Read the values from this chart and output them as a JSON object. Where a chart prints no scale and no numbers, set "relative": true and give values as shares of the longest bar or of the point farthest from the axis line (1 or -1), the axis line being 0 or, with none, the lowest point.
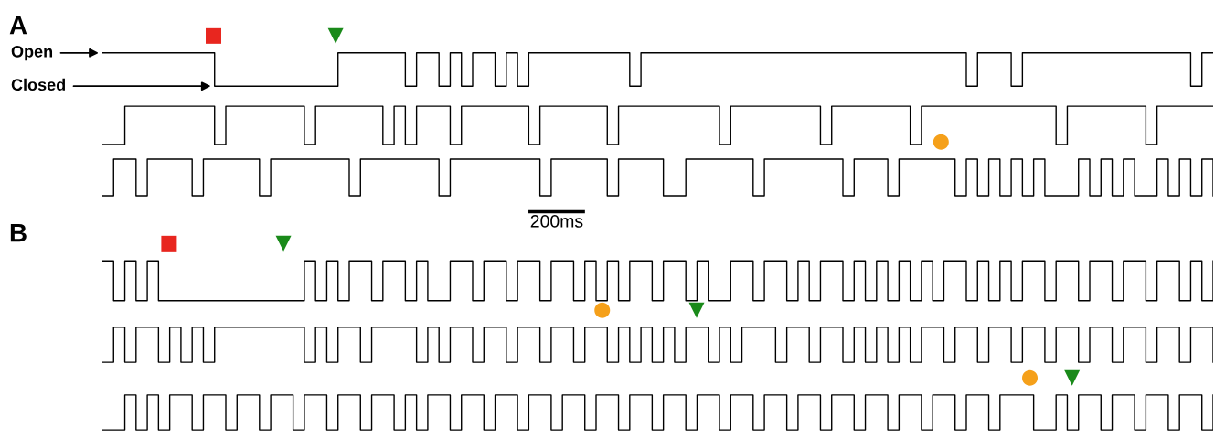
{
  "chart_data": [
    {
      "type": "step",
      "title": "A",
      "relative": true,
      "annotations": [
        "Open",
        "Closed"
      ],
      "categories": [
        null,
        null,
        null,
        null,
        null,
        null,
        null,
        null,
        null,
        null,
        null,
        null,
        null,
        null,
        null,
        null,
        null,
        null,
        null,
        null,
        null,
        null,
        null,
        null,
        null,
        null,
        null,
        null,
        null,
        null,
        null,
        null,
        null,
        null,
        null,
        null,
        null,
        null,
        null,
        null,
        null,
        null,
        null,
        null,
        null,
        null,
        null,
        null,
        null,
        null,
        null,
        null,
        null,
        null,
        null,
        null,
        null,
        null,
        null,
        null,
        null,
        null,
        null,
        null,
        null,
        null,
        null,
        null,
        null,
        null,
        null,
        null,
        null,
        null,
        null,
        null,
        null,
        null,
        null,
        null,
        null,
        null,
        null,
        null,
        null,
        null,
        null,
        null,
        null,
        null,
        null,
        null,
        null,
        null,
        null,
        null,
        null,
        null,
        null,
        null
      ],
      "series": [
        {
          "color": "#000000",
          "values": [
            1,
            1,
            1,
            1,
            1,
            1,
            1,
            1,
            1,
            1,
            0,
            0,
            0,
            0,
            0,
            0,
            0,
            0,
            0,
            0,
            0,
            1,
            1,
            1,
            1,
            1,
            1,
            0,
            1,
            1,
            0,
            1,
            0,
            1,
            1,
            0,
            1,
            0,
            1,
            1,
            1,
            1,
            1,
            1,
            1,
            1,
            1,
            0,
            1,
            1,
            1,
            1,
            1,
            1,
            1,
            1,
            1,
            1,
            1,
            1,
            1,
            1,
            1,
            1,
            1,
            1,
            1,
            1,
            1,
            1,
            1,
            1,
            1,
            1,
            1,
            1,
            1,
            0,
            1,
            1,
            1,
            0,
            1,
            1,
            1,
            1,
            1,
            1,
            1,
            1,
            1,
            1,
            1,
            1,
            1,
            1,
            1,
            0,
            1,
            1
          ]
        }
      ]
    },
    {
      "type": "step",
      "relative": true,
      "categories": [
        null,
        null,
        null,
        null,
        null,
        null,
        null,
        null,
        null,
        null,
        null,
        null,
        null,
        null,
        null,
        null,
        null,
        null,
        null,
        null,
        null,
        null,
        null,
        null,
        null,
        null,
        null,
        null,
        null,
        null,
        null,
        null,
        null,
        null,
        null,
        null,
        null,
        null,
        null,
        null,
        null,
        null,
        null,
        null,
        null,
        null,
        null,
        null,
        null,
        null,
        null,
        null,
        null,
        null,
        null,
        null,
        null,
        null,
        null,
        null,
        null,
        null,
        null,
        null,
        null,
        null,
        null,
        null,
        null,
        null,
        null,
        null,
        null,
        null,
        null,
        null,
        null,
        null,
        null,
        null,
        null,
        null,
        null,
        null,
        null,
        null,
        null,
        null,
        null,
        null,
        null,
        null,
        null,
        null,
        null,
        null,
        null,
        null,
        null,
        null
      ],
      "series": [
        {
          "color": "#000000",
          "values": [
            0,
            0,
            1,
            1,
            1,
            1,
            1,
            1,
            1,
            1,
            0,
            1,
            1,
            1,
            1,
            1,
            1,
            1,
            0,
            1,
            1,
            1,
            1,
            1,
            1,
            0,
            1,
            0,
            1,
            1,
            1,
            0,
            1,
            1,
            1,
            1,
            1,
            1,
            0,
            1,
            1,
            1,
            1,
            1,
            1,
            0,
            1,
            1,
            1,
            1,
            1,
            1,
            1,
            1,
            1,
            0,
            1,
            1,
            1,
            1,
            1,
            1,
            1,
            1,
            0,
            1,
            1,
            1,
            1,
            1,
            1,
            1,
            0,
            1,
            1,
            1,
            1,
            1,
            1,
            1,
            1,
            1,
            1,
            1,
            1,
            0,
            1,
            1,
            1,
            1,
            1,
            1,
            1,
            0,
            1,
            1,
            1,
            1,
            1,
            1
          ]
        }
      ]
    },
    {
      "type": "step",
      "relative": true,
      "annotations": [
        "200ms"
      ],
      "categories": [
        null,
        null,
        null,
        null,
        null,
        null,
        null,
        null,
        null,
        null,
        null,
        null,
        null,
        null,
        null,
        null,
        null,
        null,
        null,
        null,
        null,
        null,
        null,
        null,
        null,
        null,
        null,
        null,
        null,
        null,
        null,
        null,
        null,
        null,
        null,
        null,
        null,
        null,
        null,
        null,
        null,
        null,
        null,
        null,
        null,
        null,
        null,
        null,
        null,
        null,
        null,
        null,
        null,
        null,
        null,
        null,
        null,
        null,
        null,
        null,
        null,
        null,
        null,
        null,
        null,
        null,
        null,
        null,
        null,
        null,
        null,
        null,
        null,
        null,
        null,
        null,
        null,
        null,
        null,
        null,
        null,
        null,
        null,
        null,
        null,
        null,
        null,
        null,
        null,
        null,
        null,
        null,
        null,
        null,
        null,
        null,
        null,
        null,
        null,
        null
      ],
      "series": [
        {
          "color": "#000000",
          "values": [
            0,
            1,
            1,
            0,
            1,
            1,
            1,
            1,
            0,
            1,
            1,
            1,
            1,
            1,
            0,
            1,
            1,
            1,
            1,
            1,
            1,
            1,
            0,
            1,
            1,
            1,
            1,
            1,
            1,
            1,
            0,
            1,
            1,
            1,
            1,
            1,
            1,
            1,
            1,
            0,
            1,
            1,
            1,
            1,
            1,
            0,
            1,
            1,
            1,
            1,
            0,
            0,
            1,
            1,
            1,
            1,
            1,
            1,
            0,
            1,
            1,
            1,
            1,
            1,
            1,
            1,
            0,
            1,
            1,
            1,
            0,
            1,
            1,
            1,
            1,
            1,
            0,
            1,
            0,
            1,
            0,
            1,
            0,
            1,
            0,
            0,
            0,
            1,
            0,
            1,
            0,
            1,
            0,
            0,
            1,
            0,
            1,
            0,
            1,
            0
          ]
        }
      ]
    },
    {
      "type": "step",
      "title": "B",
      "relative": true,
      "categories": [
        null,
        null,
        null,
        null,
        null,
        null,
        null,
        null,
        null,
        null,
        null,
        null,
        null,
        null,
        null,
        null,
        null,
        null,
        null,
        null,
        null,
        null,
        null,
        null,
        null,
        null,
        null,
        null,
        null,
        null,
        null,
        null,
        null,
        null,
        null,
        null,
        null,
        null,
        null,
        null,
        null,
        null,
        null,
        null,
        null,
        null,
        null,
        null,
        null,
        null,
        null,
        null,
        null,
        null,
        null,
        null,
        null,
        null,
        null,
        null,
        null,
        null,
        null,
        null,
        null,
        null,
        null,
        null,
        null,
        null,
        null,
        null,
        null,
        null,
        null,
        null,
        null,
        null,
        null,
        null,
        null,
        null,
        null,
        null,
        null,
        null,
        null,
        null,
        null,
        null,
        null,
        null,
        null,
        null,
        null,
        null,
        null,
        null,
        null,
        null
      ],
      "series": [
        {
          "color": "#000000",
          "values": [
            1,
            0,
            1,
            0,
            1,
            0,
            0,
            0,
            0,
            0,
            0,
            0,
            0,
            0,
            0,
            0,
            0,
            0,
            1,
            0,
            1,
            0,
            1,
            1,
            0,
            1,
            1,
            0,
            1,
            0,
            0,
            1,
            1,
            0,
            1,
            1,
            0,
            1,
            1,
            0,
            1,
            1,
            0,
            1,
            0,
            1,
            0,
            1,
            1,
            0,
            1,
            1,
            0,
            1,
            0,
            0,
            1,
            1,
            0,
            1,
            1,
            0,
            1,
            0,
            1,
            1,
            0,
            1,
            0,
            1,
            0,
            1,
            0,
            1,
            0,
            1,
            1,
            0,
            1,
            0,
            1,
            0,
            1,
            1,
            0,
            1,
            1,
            0,
            1,
            1,
            0,
            1,
            1,
            0,
            1,
            1,
            0,
            1,
            0,
            1
          ]
        }
      ]
    },
    {
      "type": "step",
      "relative": true,
      "categories": [
        null,
        null,
        null,
        null,
        null,
        null,
        null,
        null,
        null,
        null,
        null,
        null,
        null,
        null,
        null,
        null,
        null,
        null,
        null,
        null,
        null,
        null,
        null,
        null,
        null,
        null,
        null,
        null,
        null,
        null,
        null,
        null,
        null,
        null,
        null,
        null,
        null,
        null,
        null,
        null,
        null,
        null,
        null,
        null,
        null,
        null,
        null,
        null,
        null,
        null,
        null,
        null,
        null,
        null,
        null,
        null,
        null,
        null,
        null,
        null,
        null,
        null,
        null,
        null,
        null,
        null,
        null,
        null,
        null,
        null,
        null,
        null,
        null,
        null,
        null,
        null,
        null,
        null,
        null,
        null,
        null,
        null,
        null,
        null,
        null,
        null,
        null,
        null,
        null,
        null,
        null,
        null,
        null,
        null,
        null,
        null,
        null,
        null,
        null,
        null
      ],
      "series": [
        {
          "color": "#000000",
          "values": [
            0,
            1,
            0,
            1,
            1,
            0,
            1,
            0,
            1,
            0,
            1,
            1,
            1,
            1,
            1,
            1,
            1,
            1,
            0,
            1,
            0,
            1,
            1,
            0,
            1,
            1,
            1,
            1,
            0,
            1,
            0,
            1,
            1,
            0,
            1,
            1,
            0,
            1,
            1,
            0,
            1,
            1,
            0,
            1,
            1,
            0,
            1,
            0,
            1,
            0,
            1,
            0,
            1,
            1,
            0,
            1,
            0,
            1,
            1,
            1,
            0,
            1,
            1,
            0,
            1,
            1,
            0,
            1,
            0,
            1,
            0,
            1,
            0,
            1,
            1,
            0,
            1,
            1,
            0,
            1,
            1,
            0,
            1,
            1,
            0,
            1,
            1,
            0,
            1,
            1,
            0,
            1,
            1,
            0,
            1,
            1,
            0,
            1,
            1,
            0
          ]
        }
      ]
    },
    {
      "type": "step",
      "relative": true,
      "categories": [
        null,
        null,
        null,
        null,
        null,
        null,
        null,
        null,
        null,
        null,
        null,
        null,
        null,
        null,
        null,
        null,
        null,
        null,
        null,
        null,
        null,
        null,
        null,
        null,
        null,
        null,
        null,
        null,
        null,
        null,
        null,
        null,
        null,
        null,
        null,
        null,
        null,
        null,
        null,
        null,
        null,
        null,
        null,
        null,
        null,
        null,
        null,
        null,
        null,
        null,
        null,
        null,
        null,
        null,
        null,
        null,
        null,
        null,
        null,
        null,
        null,
        null,
        null,
        null,
        null,
        null,
        null,
        null,
        null,
        null,
        null,
        null,
        null,
        null,
        null,
        null,
        null,
        null,
        null,
        null,
        null,
        null,
        null,
        null,
        null,
        null,
        null,
        null,
        null,
        null,
        null,
        null,
        null,
        null,
        null,
        null,
        null,
        null,
        null,
        null
      ],
      "series": [
        {
          "color": "#000000",
          "values": [
            0,
            0,
            1,
            0,
            1,
            0,
            1,
            1,
            0,
            1,
            1,
            0,
            1,
            1,
            0,
            1,
            1,
            0,
            1,
            1,
            0,
            1,
            1,
            0,
            1,
            1,
            0,
            1,
            0,
            1,
            1,
            0,
            1,
            1,
            0,
            1,
            1,
            0,
            1,
            1,
            0,
            1,
            1,
            0,
            1,
            1,
            0,
            1,
            1,
            0,
            1,
            1,
            0,
            1,
            1,
            0,
            1,
            1,
            0,
            1,
            1,
            0,
            1,
            1,
            0,
            1,
            1,
            0,
            1,
            1,
            0,
            1,
            1,
            0,
            1,
            1,
            0,
            1,
            1,
            0,
            1,
            1,
            1,
            0,
            0,
            1,
            0,
            1,
            1,
            0,
            1,
            1,
            0,
            1,
            1,
            0,
            1,
            1,
            0,
            1
          ]
        }
      ]
    }
  ]
}
